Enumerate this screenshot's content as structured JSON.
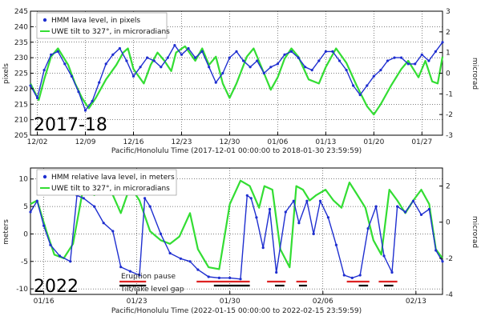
{
  "chart_data": [
    {
      "type": "line",
      "panel_label": "2017-18",
      "xlabel": "Pacific/Honolulu Time (2017-12-01 00:00:00 to 2018-01-30 23:59:59)",
      "ylabel_left": "pixels",
      "ylabel_right": "microrad",
      "x_range_days": [
        1,
        61
      ],
      "ylim_left": [
        205,
        245
      ],
      "ylim_right": [
        -3,
        3
      ],
      "x_ticks": [
        {
          "day": 2,
          "label": "12/02"
        },
        {
          "day": 9,
          "label": "12/09"
        },
        {
          "day": 16,
          "label": "12/16"
        },
        {
          "day": 23,
          "label": "12/23"
        },
        {
          "day": 30,
          "label": "12/30"
        },
        {
          "day": 37,
          "label": "01/06"
        },
        {
          "day": 44,
          "label": "01/13"
        },
        {
          "day": 51,
          "label": "01/20"
        },
        {
          "day": 58,
          "label": "01/27"
        }
      ],
      "y_ticks_left": [
        205,
        210,
        215,
        220,
        225,
        230,
        235,
        240,
        245
      ],
      "y_ticks_right": [
        -3,
        -2,
        -1,
        0,
        1,
        2,
        3
      ],
      "legend": [
        {
          "name": "HMM lava level, in pixels",
          "color": "#1f2fd0",
          "marker": "dot"
        },
        {
          "name": "UWE tilt to 327°, in microradians",
          "color": "#33dd33",
          "marker": "line"
        }
      ],
      "series": [
        {
          "name": "UWE tilt to 327°, in microradians",
          "axis": "right",
          "x": [
            1,
            2.2,
            3,
            4,
            5,
            6.5,
            7.5,
            8.5,
            9.5,
            10.5,
            12,
            13.5,
            14.5,
            15.2,
            16,
            17.5,
            18.5,
            19.5,
            20.5,
            21.5,
            22.2,
            23.5,
            25,
            26,
            27,
            28,
            29,
            30,
            31,
            32.5,
            33.5,
            35,
            36,
            37,
            38,
            39,
            40,
            41.5,
            43,
            44,
            45.5,
            47,
            48.5,
            50,
            51,
            52,
            53.5,
            55,
            56,
            57.5,
            58.5,
            59.5,
            60.3,
            61
          ],
          "y": [
            -0.5,
            -1.3,
            -0.3,
            0.8,
            1.2,
            0.4,
            -0.5,
            -1.2,
            -1.7,
            -1.2,
            -0.3,
            0.4,
            1.0,
            1.2,
            0.2,
            -0.5,
            0.4,
            1.0,
            0.6,
            0.1,
            1.0,
            1.3,
            0.6,
            1.2,
            0.4,
            0.8,
            -0.5,
            -1.2,
            -0.5,
            0.8,
            1.2,
            0.0,
            -0.8,
            -0.2,
            0.7,
            1.2,
            0.8,
            -0.3,
            -0.5,
            0.3,
            1.2,
            0.5,
            -0.6,
            -1.6,
            -2.0,
            -1.5,
            -0.6,
            0.2,
            0.6,
            -0.2,
            0.6,
            -0.4,
            -0.5,
            0.8
          ]
        },
        {
          "name": "HMM lava level, in pixels",
          "axis": "left",
          "x": [
            1,
            2,
            3,
            4,
            5,
            6,
            7,
            8,
            9,
            10,
            11,
            12,
            13,
            14,
            15,
            16,
            17,
            18,
            19,
            20,
            21,
            22,
            23,
            24,
            25,
            26,
            27,
            28,
            29,
            30,
            31,
            32,
            33,
            34,
            35,
            36,
            37,
            38,
            39,
            40,
            41,
            42,
            43,
            44,
            45,
            46,
            47,
            48,
            49,
            50,
            51,
            52,
            53,
            54,
            55,
            56,
            57,
            58,
            59,
            60,
            61
          ],
          "y": [
            221,
            217,
            226,
            231,
            232,
            228,
            224,
            219,
            213,
            216,
            222,
            228,
            231,
            233,
            229,
            224,
            227,
            230,
            229,
            227,
            230,
            234,
            231,
            233,
            230,
            232,
            227,
            222,
            225,
            230,
            232,
            229,
            227,
            229,
            225,
            227,
            228,
            231,
            232,
            230,
            227,
            226,
            229,
            232,
            232,
            229,
            226,
            221,
            218,
            221,
            224,
            226,
            229,
            230,
            230,
            228,
            228,
            231,
            229,
            232,
            235
          ]
        }
      ]
    },
    {
      "type": "line",
      "panel_label": "2022",
      "xlabel": "Pacific/Honolulu Time (2022-01-15 00:00:00 to 2022-02-15 23:59:59)",
      "ylabel_left": "meters",
      "ylabel_right": "microrad",
      "x_range_days": [
        15,
        46
      ],
      "ylim_left": [
        -11,
        12
      ],
      "ylim_right": [
        -4,
        3
      ],
      "x_ticks": [
        {
          "day": 16,
          "label": "01/16"
        },
        {
          "day": 23,
          "label": "01/23"
        },
        {
          "day": 30,
          "label": "01/30"
        },
        {
          "day": 37,
          "label": "02/06"
        },
        {
          "day": 44,
          "label": "02/13"
        }
      ],
      "y_ticks_left": [
        -10,
        -5,
        0,
        5,
        10
      ],
      "y_ticks_right": [
        -4,
        -2,
        0,
        2
      ],
      "legend": [
        {
          "name": "HMM relative lava level, in meters",
          "color": "#1f2fd0",
          "marker": "dot"
        },
        {
          "name": "UWE tilt to 327°, in microradians",
          "color": "#33dd33",
          "marker": "line"
        }
      ],
      "annotations": [
        {
          "text": "Eruption pause",
          "color": "#dd2222"
        },
        {
          "text": "Tilt/lake level gap",
          "color": "#000000"
        }
      ],
      "eruption_pause_intervals": [
        [
          21.7,
          23.7
        ],
        [
          27.5,
          31.5
        ],
        [
          32.8,
          34.2
        ],
        [
          35.0,
          35.8
        ],
        [
          38.8,
          40.5
        ],
        [
          41.2,
          42.6
        ]
      ],
      "gap_intervals": [
        [
          21.7,
          23.7
        ],
        [
          28.8,
          31.5
        ],
        [
          33.4,
          34.1
        ],
        [
          35.2,
          35.8
        ],
        [
          39.7,
          40.4
        ],
        [
          41.6,
          42.3
        ]
      ],
      "series": [
        {
          "name": "UWE tilt to 327°, in microradians",
          "axis": "right",
          "x": [
            15,
            15.5,
            16.2,
            16.8,
            17.5,
            18.2,
            19.0,
            19.8,
            20.5,
            21.2,
            21.8,
            22.5,
            23.2,
            24.0,
            24.8,
            25.5,
            26.2,
            27.0,
            27.6,
            28.4,
            29.2,
            30.0,
            30.8,
            31.5,
            32.2,
            32.6,
            33.2,
            33.8,
            34.5,
            35.0,
            35.5,
            36.0,
            36.5,
            37.2,
            37.8,
            38.4,
            39.0,
            39.6,
            40.2,
            40.8,
            41.4,
            42.0,
            42.6,
            43.2,
            43.8,
            44.4,
            45.0,
            45.5,
            46.0
          ],
          "y": [
            1.0,
            1.2,
            -0.5,
            -1.8,
            -2.0,
            -1.2,
            2.0,
            1.5,
            2.0,
            1.5,
            0.5,
            2.0,
            1.2,
            -0.5,
            -1.0,
            -1.2,
            -0.8,
            0.5,
            -1.5,
            -2.5,
            -2.6,
            1.0,
            2.3,
            2.0,
            0.8,
            2.0,
            1.8,
            -1.5,
            -2.5,
            2.0,
            1.8,
            1.2,
            1.5,
            1.8,
            1.2,
            0.8,
            2.2,
            1.5,
            0.8,
            -1.0,
            -1.8,
            1.8,
            1.2,
            0.5,
            1.2,
            1.8,
            1.0,
            -1.5,
            -2.0
          ]
        },
        {
          "name": "HMM relative lava level, in meters",
          "axis": "left",
          "x": [
            15,
            15.5,
            16.0,
            16.5,
            17.2,
            18.0,
            18.5,
            19.0,
            19.8,
            20.5,
            21.2,
            21.8,
            22.5,
            23.2,
            23.6,
            24.0,
            24.8,
            25.5,
            26.3,
            27.0,
            27.6,
            28.4,
            29.2,
            30.0,
            30.8,
            31.3,
            31.6,
            32.0,
            32.5,
            33.0,
            33.5,
            34.2,
            34.8,
            35.2,
            35.8,
            36.3,
            36.8,
            37.4,
            38.0,
            38.6,
            39.2,
            39.8,
            40.4,
            41.0,
            41.6,
            42.2,
            42.6,
            43.2,
            43.8,
            44.4,
            45.0,
            45.5,
            46.0
          ],
          "y": [
            4.0,
            6.0,
            1.5,
            -2.0,
            -4.0,
            -5.0,
            7.0,
            6.5,
            5.0,
            2.0,
            0.5,
            -6.0,
            -6.8,
            -7.5,
            6.5,
            5.0,
            0.0,
            -3.5,
            -4.5,
            -5.0,
            -6.5,
            -7.8,
            -8.0,
            -8.0,
            -8.2,
            7.0,
            6.5,
            3.0,
            -2.5,
            4.5,
            -7.0,
            4.0,
            6.0,
            2.0,
            6.0,
            0.0,
            6.0,
            3.0,
            -2.0,
            -7.5,
            -8.0,
            -7.5,
            1.0,
            5.0,
            -4.0,
            -7.0,
            5.0,
            4.0,
            6.0,
            3.5,
            4.5,
            -3.0,
            -5.0
          ]
        }
      ]
    }
  ]
}
